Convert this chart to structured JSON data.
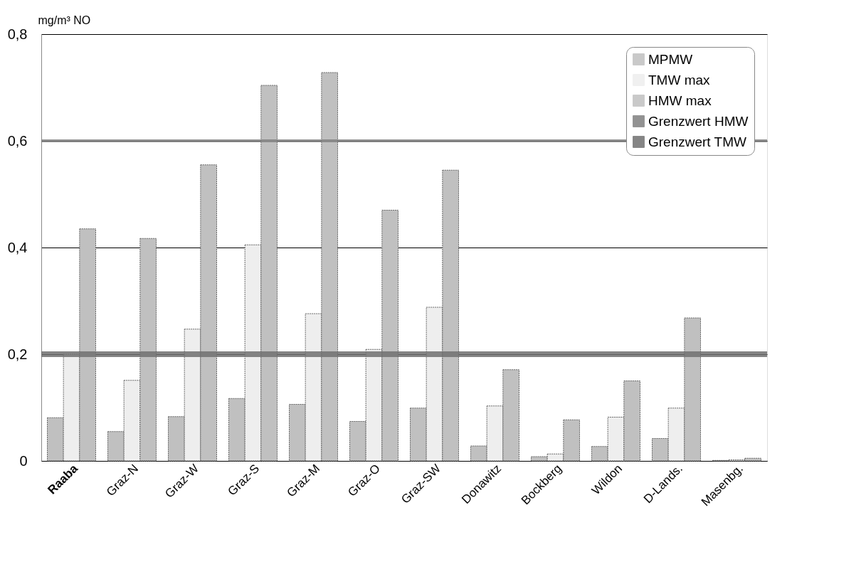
{
  "chart_data": {
    "type": "bar",
    "ylabel": "mg/m³ NO",
    "categories": [
      "Raaba",
      "Graz-N",
      "Graz-W",
      "Graz-S",
      "Graz-M",
      "Graz-O",
      "Graz-SW",
      "Donawitz",
      "Bockberg",
      "Wildon",
      "D-Lands.",
      "Masenbg."
    ],
    "series": [
      {
        "name": "MPMW",
        "color": "#c0c0c0",
        "values": [
          0.081,
          0.055,
          0.083,
          0.117,
          0.106,
          0.074,
          0.099,
          0.028,
          0.008,
          0.027,
          0.042,
          0.001
        ]
      },
      {
        "name": "TMW max",
        "color": "#eeeeee",
        "values": [
          0.2,
          0.151,
          0.247,
          0.405,
          0.276,
          0.209,
          0.288,
          0.103,
          0.013,
          0.082,
          0.099,
          0.002
        ]
      },
      {
        "name": "HMW max",
        "color": "#c0c0c0",
        "values": [
          0.435,
          0.417,
          0.555,
          0.704,
          0.728,
          0.47,
          0.545,
          0.171,
          0.077,
          0.15,
          0.268,
          0.005
        ]
      }
    ],
    "ref_lines": [
      {
        "axis": "y",
        "value": 0.6,
        "label": "Grenzwert HMW",
        "color": "#808080"
      },
      {
        "axis": "y",
        "value": 0.2,
        "label": "Grenzwert TMW",
        "color": "#707070"
      }
    ],
    "ylim": [
      0,
      0.8
    ],
    "yticks": [
      {
        "value": 0,
        "label": "0"
      },
      {
        "value": 0.2,
        "label": "0,2"
      },
      {
        "value": 0.4,
        "label": "0,4"
      },
      {
        "value": 0.6,
        "label": "0,6"
      },
      {
        "value": 0.8,
        "label": "0,8"
      }
    ],
    "grid": "y",
    "legend": "top right"
  }
}
